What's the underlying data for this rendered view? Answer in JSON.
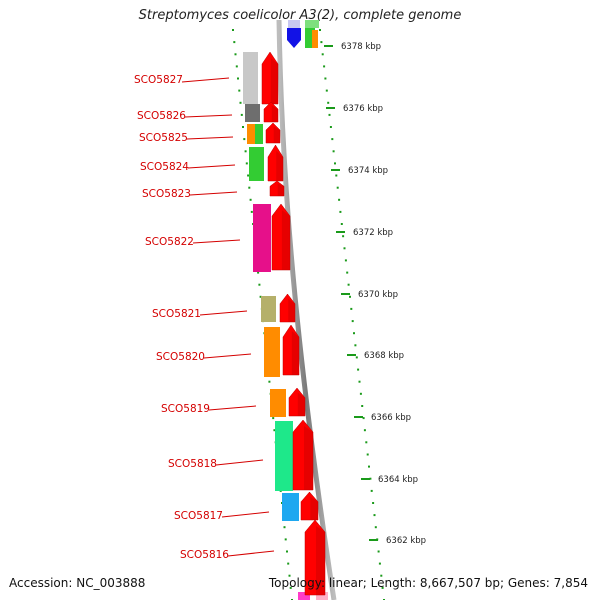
{
  "title": "Streptomyces coelicolor A3(2), complete genome",
  "accession": "Accession: NC_003888",
  "stats": "Topology: linear; Length: 8,667,507 bp; Genes: 7,854",
  "ticks": [
    "6378 kbp",
    "6376 kbp",
    "6374 kbp",
    "6372 kbp",
    "6370 kbp",
    "6368 kbp",
    "6366 kbp",
    "6364 kbp",
    "6362 kbp"
  ],
  "genes": [
    {
      "label": "SCO5827",
      "color": "#c8c8c8"
    },
    {
      "label": "SCO5826",
      "color": "#6e6e6e"
    },
    {
      "label": "SCO5825",
      "color": "#ff8c00"
    },
    {
      "label": "SCO5824",
      "color": "#33cc33"
    },
    {
      "label": "SCO5823",
      "color": ""
    },
    {
      "label": "SCO5822",
      "color": "#e6108a"
    },
    {
      "label": "SCO5821",
      "color": "#b5b06a"
    },
    {
      "label": "SCO5820",
      "color": "#ff8c00"
    },
    {
      "label": "SCO5819",
      "color": "#ff8c00"
    },
    {
      "label": "SCO5818",
      "color": "#1ee88a"
    },
    {
      "label": "SCO5817",
      "color": "#1ea8f0"
    },
    {
      "label": "SCO5816",
      "color": ""
    }
  ],
  "colors": {
    "label": "#d40000",
    "arrow": "#ff0000",
    "dots": "#1a9a1a",
    "backbone": "#888888"
  }
}
